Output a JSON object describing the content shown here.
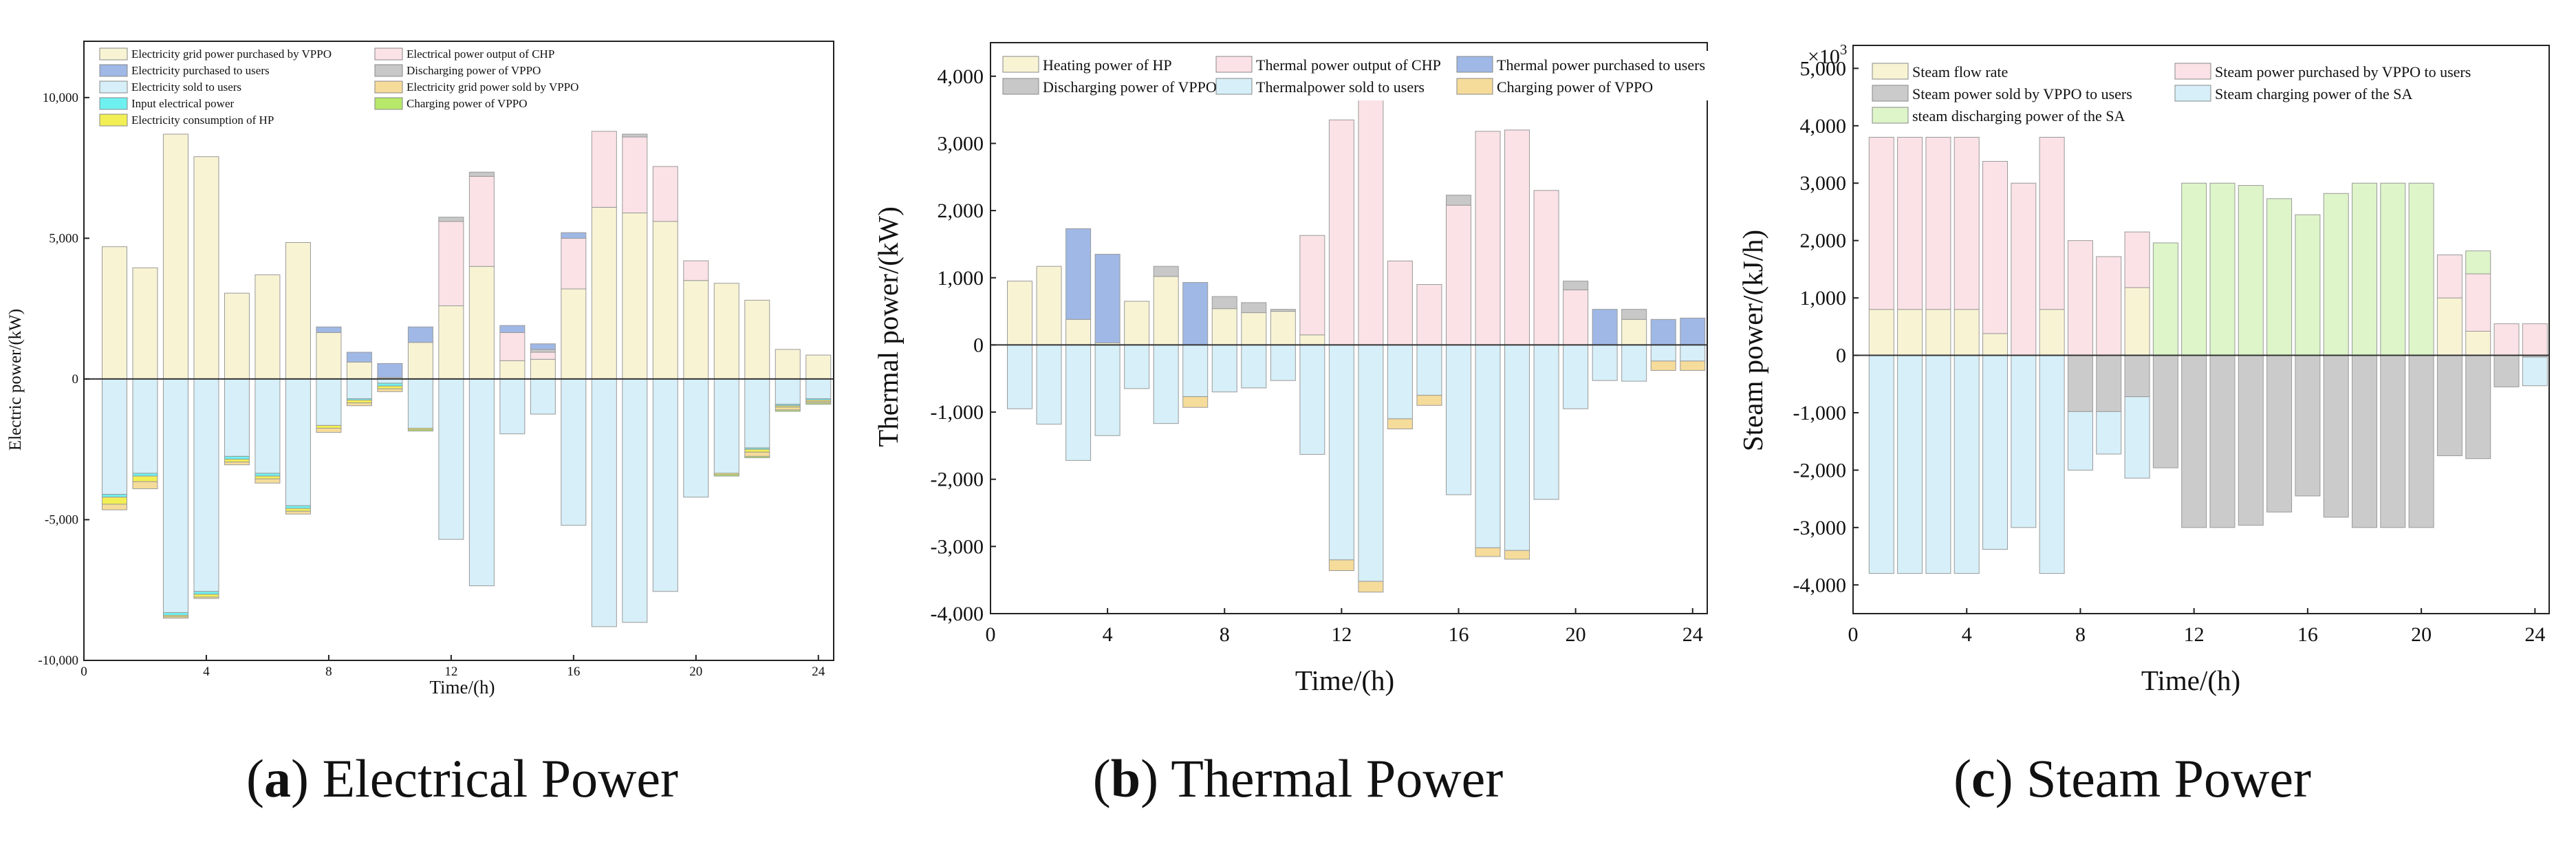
{
  "colors": {
    "elec_grid_purchased": "#f8f3d3",
    "elec_purchased_users": "#9fb8e6",
    "elec_sold_users": "#d6eff8",
    "elec_input": "#6ff0f0",
    "elec_hp": "#f2ef55",
    "elec_chp": "#fbe2e6",
    "elec_discharging": "#c8c8c8",
    "elec_grid_sold": "#f6dc9a",
    "elec_charging": "#b7e86a",
    "th_hp": "#f8f3d3",
    "th_discharging": "#c8c8c8",
    "th_chp": "#fbe2e6",
    "th_sold": "#d6eff8",
    "th_purchased": "#9fb8e6",
    "th_charging": "#f6dc9a",
    "st_flow": "#f8f3d3",
    "st_sold": "#cbcbcb",
    "st_discharging": "#ddf5c8",
    "st_purchased": "#fbe2e6",
    "st_charging": "#d6eff8"
  },
  "chart_data": [
    {
      "id": "a",
      "type": "bar",
      "title": "Electrical Power",
      "caption_letter": "a",
      "xlabel": "Time/(h)",
      "ylabel": "Electric power/(kW)",
      "xlim": [
        0,
        24.5
      ],
      "ylim": [
        -10000,
        12000
      ],
      "xticks": [
        0,
        4,
        8,
        12,
        16,
        20,
        24
      ],
      "yticks": [
        -10000,
        -5000,
        0,
        5000,
        10000
      ],
      "ytick_labels": [
        "-10,000",
        "-5,000",
        "0",
        "5,000",
        "10,000"
      ],
      "hours": [
        1,
        2,
        3,
        4,
        5,
        6,
        7,
        8,
        9,
        10,
        11,
        12,
        13,
        14,
        15,
        16,
        17,
        18,
        19,
        20,
        21,
        22,
        23,
        24
      ],
      "positive_series": [
        {
          "name": "Electricity grid power purchased by VPPO",
          "color_key": "elec_grid_purchased",
          "values": [
            4700,
            3950,
            8700,
            7900,
            3050,
            3700,
            4850,
            1650,
            600,
            50,
            1300,
            2600,
            4000,
            650,
            700,
            3200,
            6100,
            5900,
            5600,
            3500,
            3400,
            2800,
            1050,
            850
          ]
        },
        {
          "name": "Electrical power output of CHP",
          "color_key": "elec_chp",
          "values": [
            0,
            0,
            0,
            0,
            0,
            0,
            0,
            0,
            0,
            0,
            0,
            3000,
            3200,
            1000,
            250,
            1800,
            2700,
            2700,
            1950,
            700,
            0,
            0,
            0,
            0
          ]
        },
        {
          "name": "Discharging power of VPPO",
          "color_key": "elec_discharging",
          "values": [
            0,
            0,
            0,
            0,
            0,
            0,
            0,
            0,
            0,
            0,
            0,
            150,
            150,
            0,
            100,
            0,
            0,
            100,
            0,
            0,
            0,
            0,
            0,
            0
          ]
        },
        {
          "name": "Electricity purchased to users",
          "color_key": "elec_purchased_users",
          "values": [
            0,
            0,
            0,
            0,
            0,
            0,
            0,
            200,
            350,
            500,
            550,
            0,
            0,
            250,
            200,
            200,
            0,
            0,
            0,
            0,
            0,
            0,
            0,
            0
          ]
        }
      ],
      "negative_series": [
        {
          "name": "Electricity sold to users",
          "color_key": "elec_sold_users",
          "values": [
            -4100,
            -3350,
            -8300,
            -7550,
            -2750,
            -3350,
            -4500,
            -1650,
            -700,
            -150,
            -1750,
            -5700,
            -7350,
            -1950,
            -1250,
            -5200,
            -8800,
            -8650,
            -7550,
            -4200,
            -3350,
            -2450,
            -900,
            -700
          ]
        },
        {
          "name": "Input electrical power",
          "color_key": "elec_input",
          "values": [
            -100,
            -100,
            -100,
            -100,
            -100,
            -100,
            -100,
            0,
            -50,
            -100,
            0,
            0,
            0,
            0,
            0,
            0,
            0,
            0,
            0,
            0,
            0,
            -50,
            -50,
            -50
          ]
        },
        {
          "name": "Electricity consumption of HP",
          "color_key": "elec_hp",
          "values": [
            -250,
            -200,
            -50,
            -100,
            -100,
            -100,
            -100,
            -100,
            -100,
            -100,
            -50,
            0,
            0,
            0,
            0,
            0,
            0,
            0,
            0,
            0,
            -50,
            -100,
            -50,
            -50
          ]
        },
        {
          "name": "Electricity grid power sold by VPPO",
          "color_key": "elec_grid_sold",
          "values": [
            -200,
            -250,
            -50,
            -50,
            -100,
            -150,
            -100,
            -150,
            -100,
            -100,
            0,
            0,
            0,
            0,
            0,
            0,
            0,
            0,
            0,
            0,
            0,
            -150,
            -100,
            -50
          ]
        },
        {
          "name": "Charging power of VPPO",
          "color_key": "elec_charging",
          "values": [
            0,
            0,
            0,
            0,
            0,
            0,
            0,
            0,
            0,
            0,
            -50,
            0,
            0,
            0,
            0,
            0,
            0,
            0,
            0,
            0,
            -50,
            -50,
            -50,
            -50
          ]
        }
      ],
      "legend": [
        "Electricity grid power purchased by VPPO",
        "Electrical power output of CHP",
        "Electricity purchased to users",
        "Discharging power of VPPO",
        "Electricity sold to users",
        "Electricity grid power sold by VPPO",
        "Input electrical power",
        "Charging power of VPPO",
        "Electricity consumption of HP"
      ],
      "legend_colors": [
        "elec_grid_purchased",
        "elec_chp",
        "elec_purchased_users",
        "elec_discharging",
        "elec_sold_users",
        "elec_grid_sold",
        "elec_input",
        "elec_charging",
        "elec_hp"
      ]
    },
    {
      "id": "b",
      "type": "bar",
      "title": "Thermal Power",
      "caption_letter": "b",
      "xlabel": "Time/(h)",
      "ylabel": "Thermal power/(kW)",
      "xlim": [
        0,
        24.5
      ],
      "ylim": [
        -4000,
        4500
      ],
      "xticks": [
        0,
        4,
        8,
        12,
        16,
        20,
        24
      ],
      "yticks": [
        -4000,
        -3000,
        -2000,
        -1000,
        0,
        1000,
        2000,
        3000,
        4000
      ],
      "ytick_labels": [
        "-4,000",
        "-3,000",
        "-2,000",
        "-1,000",
        "0",
        "1,000",
        "2,000",
        "3,000",
        "4,000"
      ],
      "hours": [
        1,
        2,
        3,
        4,
        5,
        6,
        7,
        8,
        9,
        10,
        11,
        12,
        13,
        14,
        15,
        16,
        17,
        18,
        19,
        20,
        21,
        22,
        23,
        24
      ],
      "positive_series": [
        {
          "name": "Heating power of HP",
          "color_key": "th_hp",
          "values": [
            950,
            1170,
            380,
            30,
            650,
            1020,
            0,
            540,
            480,
            500,
            150,
            0,
            0,
            0,
            0,
            0,
            0,
            0,
            0,
            0,
            0,
            380,
            0,
            0
          ]
        },
        {
          "name": "Thermal power output of CHP",
          "color_key": "th_chp",
          "values": [
            0,
            0,
            0,
            0,
            0,
            0,
            0,
            0,
            0,
            0,
            1480,
            3350,
            3670,
            1250,
            900,
            2080,
            3180,
            3200,
            2300,
            820,
            0,
            0,
            0,
            0
          ]
        },
        {
          "name": "Discharging power of VPPO",
          "color_key": "th_discharging",
          "values": [
            0,
            0,
            0,
            0,
            0,
            150,
            0,
            180,
            150,
            30,
            0,
            0,
            0,
            0,
            0,
            150,
            0,
            0,
            0,
            130,
            0,
            150,
            0,
            0
          ]
        },
        {
          "name": "Thermal power purchased to users",
          "color_key": "th_purchased",
          "values": [
            0,
            0,
            1350,
            1320,
            0,
            0,
            930,
            0,
            0,
            0,
            0,
            0,
            0,
            0,
            0,
            0,
            0,
            0,
            0,
            0,
            530,
            0,
            380,
            400
          ]
        }
      ],
      "negative_series": [
        {
          "name": "Thermalpower sold to users",
          "color_key": "th_sold",
          "values": [
            -950,
            -1180,
            -1720,
            -1350,
            -650,
            -1170,
            -770,
            -700,
            -640,
            -530,
            -1630,
            -3200,
            -3520,
            -1100,
            -750,
            -2230,
            -3020,
            -3060,
            -2300,
            -950,
            -530,
            -540,
            -240,
            -240
          ]
        },
        {
          "name": "Charging power of VPPO",
          "color_key": "th_charging",
          "values": [
            0,
            0,
            0,
            0,
            0,
            0,
            -160,
            0,
            0,
            0,
            0,
            -160,
            -160,
            -150,
            -150,
            0,
            -130,
            -130,
            0,
            0,
            0,
            0,
            -140,
            -140
          ]
        }
      ],
      "legend": [
        "Heating power of HP",
        "Thermal power output of CHP",
        "Thermal power purchased to users",
        "Discharging power of VPPO",
        "Thermalpower sold to users",
        "Charging power of VPPO"
      ],
      "legend_colors": [
        "th_hp",
        "th_chp",
        "th_purchased",
        "th_discharging",
        "th_sold",
        "th_charging"
      ]
    },
    {
      "id": "c",
      "type": "bar",
      "title": "Steam Power",
      "caption_letter": "c",
      "xlabel": "Time/(h)",
      "ylabel": "Steam power/(kJ/h)",
      "multiplier_label": "×10",
      "multiplier_exp": "3",
      "xlim": [
        0,
        24.5
      ],
      "ylim": [
        -4500,
        5400
      ],
      "xticks": [
        0,
        4,
        8,
        12,
        16,
        20,
        24
      ],
      "yticks": [
        -4000,
        -3000,
        -2000,
        -1000,
        0,
        1000,
        2000,
        3000,
        4000,
        5000
      ],
      "ytick_labels": [
        "-4,000",
        "-3,000",
        "-2,000",
        "-1,000",
        "0",
        "1,000",
        "2,000",
        "3,000",
        "4,000",
        "5,000"
      ],
      "hours": [
        1,
        2,
        3,
        4,
        5,
        6,
        7,
        8,
        9,
        10,
        11,
        12,
        13,
        14,
        15,
        16,
        17,
        18,
        19,
        20,
        21,
        22,
        23,
        24
      ],
      "positive_series": [
        {
          "name": "Steam flow rate",
          "color_key": "st_flow",
          "values": [
            800,
            800,
            800,
            800,
            380,
            0,
            800,
            0,
            0,
            1180,
            0,
            0,
            0,
            0,
            0,
            0,
            0,
            0,
            0,
            0,
            1000,
            420,
            0,
            0
          ]
        },
        {
          "name": "steam discharging power of the SA",
          "color_key": "st_discharging",
          "values": [
            0,
            0,
            0,
            0,
            0,
            0,
            0,
            0,
            0,
            0,
            1960,
            3000,
            3000,
            2960,
            2730,
            2450,
            2820,
            3000,
            3000,
            3000,
            0,
            0,
            0,
            0
          ]
        },
        {
          "name": "Steam power purchased by VPPO to users",
          "color_key": "st_purchased",
          "values": [
            3000,
            3000,
            3000,
            3000,
            3000,
            3000,
            3000,
            2000,
            1720,
            970,
            0,
            0,
            0,
            0,
            0,
            0,
            0,
            0,
            0,
            0,
            750,
            1000,
            550,
            550
          ]
        },
        {
          "name": "steam discharging power of the SA",
          "color_key": "st_discharging",
          "values": [
            0,
            0,
            0,
            0,
            0,
            0,
            0,
            0,
            0,
            0,
            0,
            0,
            0,
            0,
            0,
            0,
            0,
            0,
            0,
            0,
            0,
            400,
            0,
            0
          ]
        }
      ],
      "negative_series": [
        {
          "name": "Steam power sold by VPPO to users",
          "color_key": "st_sold",
          "values": [
            0,
            0,
            0,
            0,
            0,
            0,
            0,
            -980,
            -980,
            -720,
            -1960,
            -3000,
            -3000,
            -2960,
            -2730,
            -2450,
            -2820,
            -3000,
            -3000,
            -3000,
            -1750,
            -1800,
            -550,
            -30
          ]
        },
        {
          "name": "Steam charging power of the SA",
          "color_key": "st_charging",
          "values": [
            -3800,
            -3800,
            -3800,
            -3800,
            -3380,
            -3000,
            -3800,
            -1020,
            -740,
            -1420,
            0,
            0,
            0,
            0,
            0,
            0,
            0,
            0,
            0,
            0,
            0,
            0,
            0,
            -500
          ]
        }
      ],
      "legend": [
        "Steam flow rate",
        "Steam power purchased by VPPO to users",
        "Steam power sold by VPPO to users",
        "Steam charging power of the SA",
        "steam discharging power of the SA"
      ],
      "legend_colors": [
        "st_flow",
        "st_purchased",
        "st_sold",
        "st_charging",
        "st_discharging"
      ]
    }
  ]
}
